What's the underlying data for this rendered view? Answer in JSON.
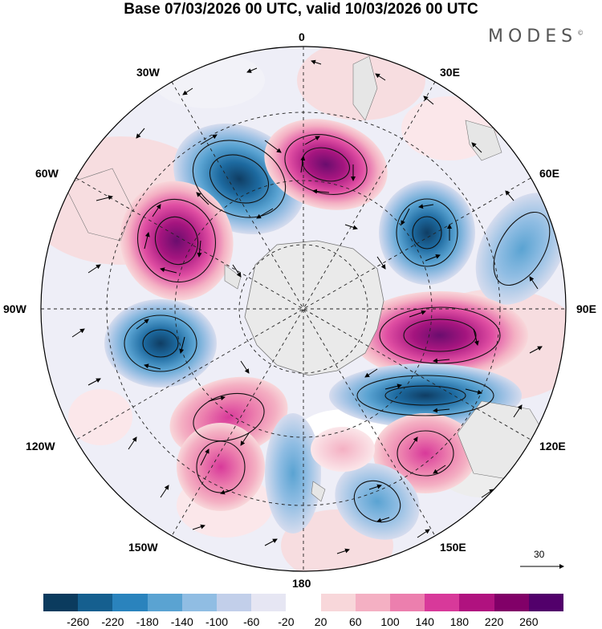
{
  "title": "Base 07/03/2026 00 UTC, valid 10/03/2026 00 UTC",
  "brand": "MODES",
  "brand_mark": "©",
  "longitudes": {
    "lon_0": "0",
    "lon_30e": "30E",
    "lon_60e": "60E",
    "lon_90e": "90E",
    "lon_120e": "120E",
    "lon_150e": "150E",
    "lon_180": "180",
    "lon_150w": "150W",
    "lon_120w": "120W",
    "lon_90w": "90W",
    "lon_60w": "60W",
    "lon_30w": "30W"
  },
  "vector_scale_label": "30",
  "colorbar": {
    "colors": [
      "#0b3b5e",
      "#155f8f",
      "#2a83bd",
      "#5aa3d2",
      "#90bde3",
      "#c2cfea",
      "#e6e6f3",
      "#ffffff",
      "#f8d7da",
      "#f4b0c3",
      "#ec7fae",
      "#d8399a",
      "#b0127f",
      "#810068",
      "#52006b"
    ],
    "tick_labels": [
      "-260",
      "-220",
      "-180",
      "-140",
      "-100",
      "-60",
      "-20",
      "20",
      "60",
      "100",
      "140",
      "180",
      "220",
      "260"
    ]
  }
}
